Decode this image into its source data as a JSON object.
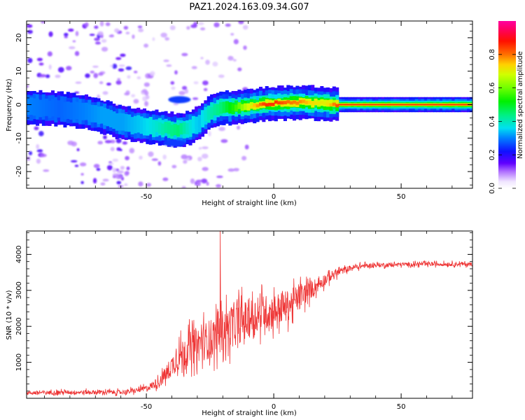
{
  "title": "PAZ1.2024.163.09.34.G07",
  "colorbar": {
    "label": "Normalized spectral amplitude",
    "ticks": [
      "0.0",
      "0.2",
      "0.4",
      "0.6",
      "0.8"
    ],
    "tick_values": [
      0.0,
      0.2,
      0.4,
      0.6,
      0.8
    ],
    "range": [
      0,
      1
    ],
    "colormap": "gist_ncar-like (white → purple → blue → cyan → green → yellow → orange → red → magenta)"
  },
  "chart_data": [
    {
      "type": "heatmap",
      "xlabel": "Height of straight line (km)",
      "ylabel": "Frequency (Hz)",
      "xlim": [
        -97,
        78
      ],
      "ylim": [
        -25,
        25
      ],
      "x_ticks": [
        -50,
        0,
        50
      ],
      "y_ticks": [
        20,
        10,
        0,
        -10,
        -20
      ],
      "grid": false,
      "ridge": {
        "x": [
          -97,
          -85,
          -75,
          -68,
          -60,
          -52,
          -47,
          -43,
          -38,
          -34,
          -30,
          -26,
          -21,
          -16,
          -12,
          -8,
          -4,
          0,
          5,
          10,
          15,
          20,
          25,
          78
        ],
        "y": [
          -0.8,
          -1.2,
          -2.2,
          -3.5,
          -5.5,
          -6.3,
          -6.8,
          -7.2,
          -7.6,
          -7.0,
          -5.5,
          -2.6,
          -1.0,
          -0.9,
          -0.4,
          -0.4,
          0.3,
          0.4,
          0.5,
          0.7,
          0.5,
          0.3,
          0.0,
          0.0
        ],
        "amplitude": [
          0.3,
          0.28,
          0.3,
          0.32,
          0.32,
          0.35,
          0.38,
          0.42,
          0.45,
          0.38,
          0.34,
          0.4,
          0.45,
          0.55,
          0.65,
          0.75,
          0.85,
          0.85,
          0.8,
          0.78,
          0.72,
          0.7,
          0.85,
          0.85
        ]
      },
      "secondary_features": [
        {
          "x": -37,
          "y": 1.5,
          "amplitude": 0.25
        },
        {
          "x": -39,
          "y": -11.5,
          "amplitude": 0.25
        }
      ]
    },
    {
      "type": "line",
      "xlabel": "Height of straight line (km)",
      "ylabel": "SNR (10 * v/v)",
      "xlim": [
        -97,
        78
      ],
      "ylim": [
        0,
        4650
      ],
      "x_ticks": [
        -50,
        0,
        50
      ],
      "y_ticks": [
        1000,
        2000,
        3000,
        4000
      ],
      "grid": false,
      "series": [
        {
          "color": "#ee3333",
          "envelope_x": [
            -97,
            -80,
            -70,
            -60,
            -55,
            -50,
            -45,
            -42,
            -38,
            -35,
            -30,
            -25,
            -20,
            -15,
            -10,
            -5,
            0,
            5,
            10,
            15,
            20,
            25,
            30,
            35,
            40,
            50,
            60,
            70,
            78
          ],
          "envelope_y": [
            150,
            170,
            170,
            170,
            200,
            280,
            450,
            700,
            1100,
            1300,
            1500,
            1650,
            1900,
            2050,
            2200,
            2350,
            2450,
            2550,
            2800,
            3050,
            3300,
            3500,
            3620,
            3680,
            3700,
            3720,
            3730,
            3730,
            3730
          ],
          "noise": [
            100,
            100,
            110,
            110,
            120,
            150,
            260,
            450,
            650,
            800,
            900,
            1000,
            1050,
            1050,
            1000,
            900,
            850,
            800,
            650,
            450,
            300,
            200,
            140,
            120,
            110,
            100,
            100,
            100,
            100
          ],
          "peak": {
            "x": -21,
            "y": 4650
          }
        }
      ]
    }
  ]
}
